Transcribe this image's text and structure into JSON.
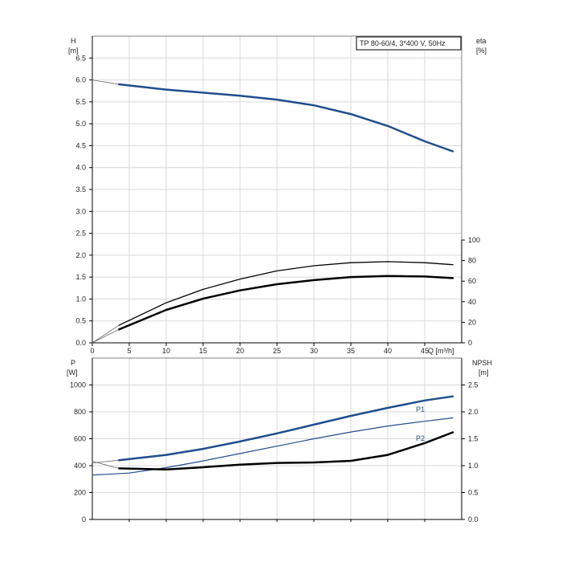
{
  "chart_data": [
    {
      "type": "line",
      "title": "TP 80-60/4, 3*400 V, 50Hz",
      "xlabel": "Q [m³/h]",
      "x_ticks": [
        "0",
        "5",
        "10",
        "15",
        "20",
        "25",
        "30",
        "35",
        "40",
        "45"
      ],
      "xlim": [
        0,
        50
      ],
      "ylabel_left": "H",
      "ylabel_left_unit": "[m]",
      "ylim_left": [
        0,
        7.0
      ],
      "y_ticks_left": [
        "0.0",
        "0.5",
        "1.0",
        "1.5",
        "2.0",
        "2.5",
        "3.0",
        "3.5",
        "4.0",
        "4.5",
        "5.0",
        "5.5",
        "6.0",
        "6.5"
      ],
      "ylabel_right": "eta",
      "ylabel_right_unit": "[%]",
      "ylim_right": [
        0,
        100
      ],
      "y_ticks_right": [
        "0",
        "20",
        "40",
        "60",
        "80",
        "100"
      ],
      "grid": true,
      "series": [
        {
          "name": "",
          "axis": "left",
          "color": "#1f4e8c",
          "width": 2.5,
          "x": [
            3.6,
            10,
            15,
            20,
            25,
            30,
            35,
            40,
            45,
            48.8
          ],
          "values": [
            5.9,
            5.78,
            5.71,
            5.64,
            5.55,
            5.42,
            5.22,
            4.95,
            4.6,
            4.37
          ]
        },
        {
          "name": "",
          "axis": "left",
          "color": "#666666",
          "width": 0.8,
          "x": [
            0,
            3.6
          ],
          "values": [
            6.0,
            5.9
          ]
        },
        {
          "name": "",
          "axis": "right",
          "color": "#000000",
          "width": 1.3,
          "x": [
            3.6,
            10,
            15,
            20,
            25,
            30,
            35,
            40,
            45,
            48.8
          ],
          "values": [
            17,
            39,
            52,
            62,
            70,
            75,
            78,
            79,
            78,
            76
          ]
        },
        {
          "name": "",
          "axis": "right",
          "color": "#000000",
          "width": 2.5,
          "x": [
            3.6,
            10,
            15,
            20,
            25,
            30,
            35,
            40,
            45,
            48.8
          ],
          "values": [
            13,
            32,
            43,
            51,
            57,
            61,
            64,
            65,
            64.5,
            63
          ]
        },
        {
          "name": "",
          "axis": "right",
          "color": "#666666",
          "width": 0.8,
          "x": [
            0,
            3.6
          ],
          "values": [
            0,
            17
          ]
        },
        {
          "name": "",
          "axis": "right",
          "color": "#666666",
          "width": 0.8,
          "x": [
            0,
            3.6
          ],
          "values": [
            0,
            13
          ]
        }
      ]
    },
    {
      "type": "line",
      "xlabel": "",
      "xlim": [
        0,
        50
      ],
      "ylabel_left": "P",
      "ylabel_left_unit": "[W]",
      "ylim_left": [
        0,
        1200
      ],
      "y_ticks_left": [
        "0",
        "200",
        "400",
        "600",
        "800",
        "1000"
      ],
      "ylabel_right": "NPSH",
      "ylabel_right_unit": "[m]",
      "ylim_right": [
        0,
        3.0
      ],
      "y_ticks_right": [
        "0.0",
        "0.5",
        "1.0",
        "1.5",
        "2.0",
        "2.5"
      ],
      "grid": true,
      "series": [
        {
          "name": "P1",
          "axis": "left",
          "color": "#1f4e8c",
          "width": 2.5,
          "x": [
            3.6,
            10,
            15,
            20,
            25,
            30,
            35,
            40,
            45,
            48.8
          ],
          "values": [
            440,
            480,
            525,
            580,
            640,
            705,
            770,
            830,
            885,
            915
          ]
        },
        {
          "name": "P2",
          "axis": "left",
          "color": "#1f4e8c",
          "width": 1.2,
          "x": [
            0,
            5,
            10,
            15,
            20,
            25,
            30,
            35,
            40,
            45,
            48.8
          ],
          "values": [
            330,
            345,
            385,
            435,
            490,
            545,
            600,
            650,
            695,
            730,
            755
          ]
        },
        {
          "name": "",
          "axis": "right",
          "color": "#000000",
          "width": 2.5,
          "x": [
            3.6,
            10,
            15,
            20,
            25,
            30,
            35,
            40,
            45,
            48.8
          ],
          "values": [
            0.95,
            0.93,
            0.97,
            1.02,
            1.05,
            1.06,
            1.09,
            1.2,
            1.42,
            1.62
          ]
        },
        {
          "name": "",
          "axis": "left",
          "color": "#666666",
          "width": 0.8,
          "x": [
            0,
            3.6
          ],
          "values": [
            420,
            440
          ]
        },
        {
          "name": "",
          "axis": "right",
          "color": "#666666",
          "width": 0.8,
          "x": [
            0,
            3.6
          ],
          "values": [
            1.08,
            0.95
          ]
        }
      ]
    }
  ]
}
